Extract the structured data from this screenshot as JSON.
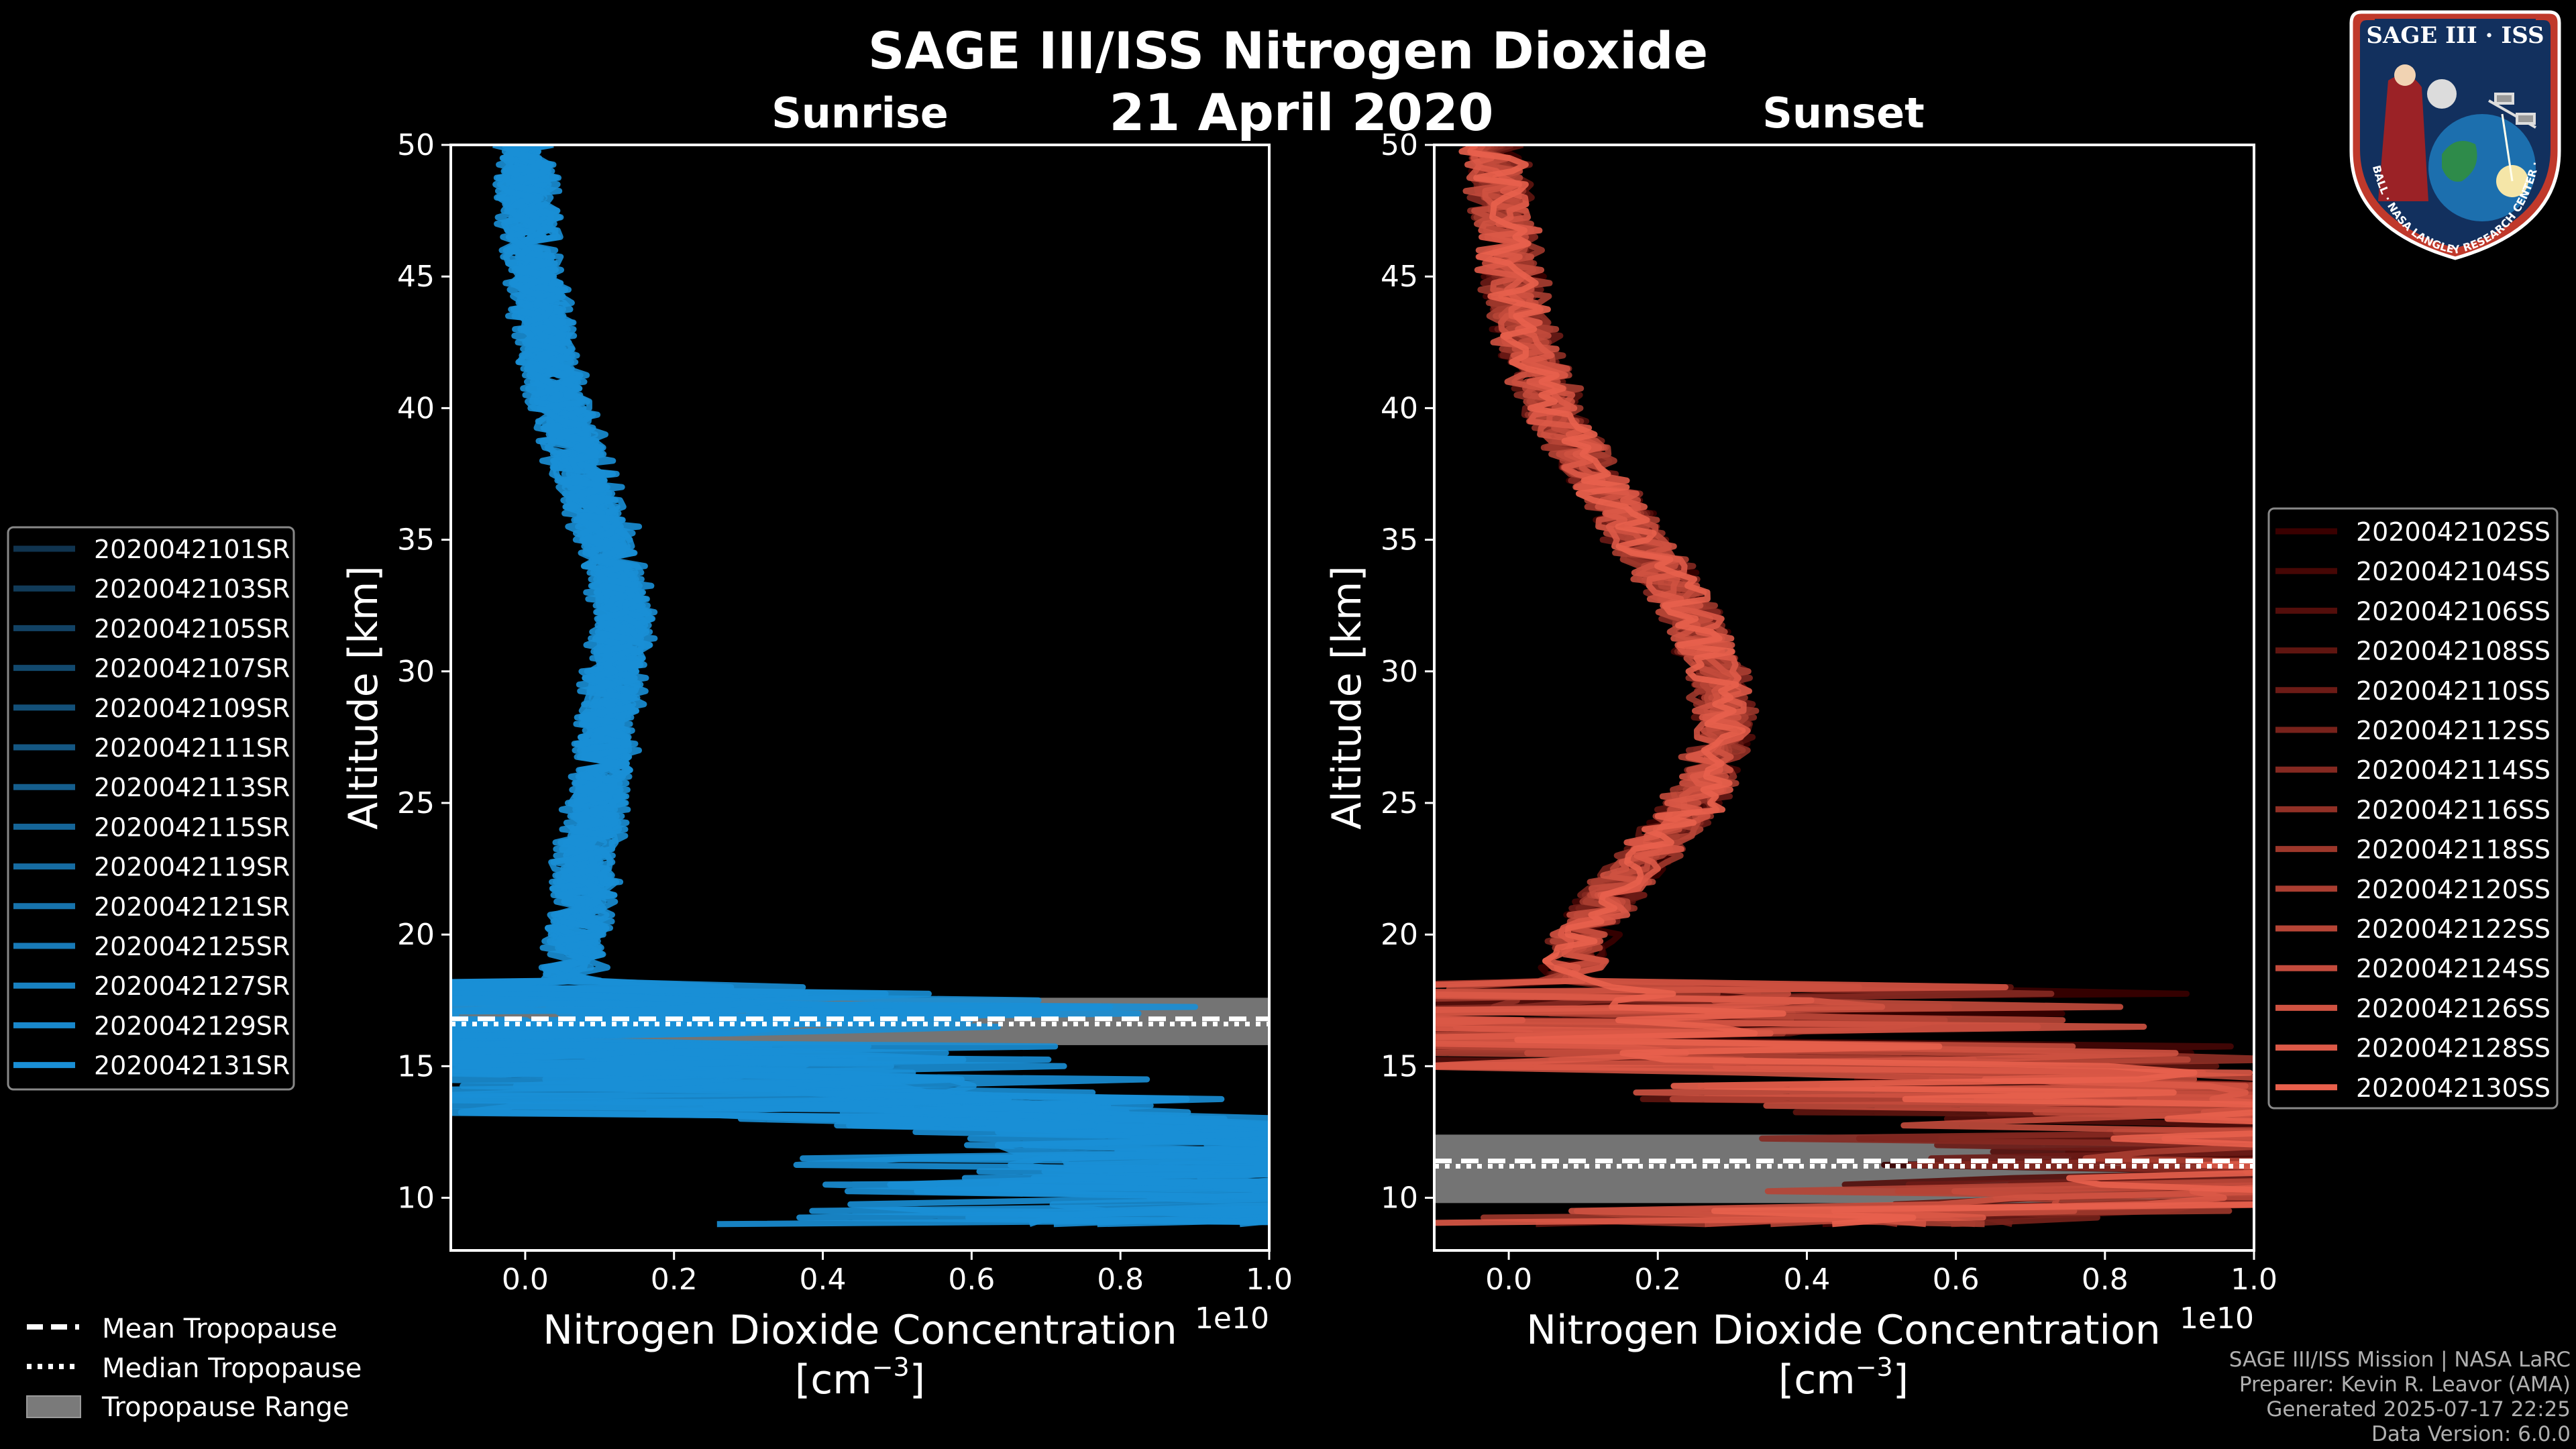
{
  "title": "SAGE III/ISS Nitrogen Dioxide",
  "date": "21 April 2020",
  "chart_data": [
    {
      "type": "line",
      "panel": "sunrise",
      "title": "Sunrise",
      "xlabel_line1": "Nitrogen Dioxide Concentration",
      "xlabel_line2": "[cm",
      "xlabel_exp": "−3",
      "xlabel_close": "]",
      "ylabel": "Altitude [km]",
      "offset_text": "1e10",
      "xlim": [
        -0.1,
        1.0
      ],
      "ylim": [
        8,
        50
      ],
      "xticks": [
        0.0,
        0.2,
        0.4,
        0.6,
        0.8,
        1.0
      ],
      "xtick_labels": [
        "0.0",
        "0.2",
        "0.4",
        "0.6",
        "0.8",
        "1.0"
      ],
      "yticks": [
        10,
        15,
        20,
        25,
        30,
        35,
        40,
        45,
        50
      ],
      "ytick_labels": [
        "10",
        "15",
        "20",
        "25",
        "30",
        "35",
        "40",
        "45",
        "50"
      ],
      "tropopause": {
        "mean": 16.8,
        "median": 16.6,
        "range": [
          15.8,
          17.6
        ]
      },
      "series_color": "#1a8fd6",
      "series": [
        {
          "name": "2020042101SR"
        },
        {
          "name": "2020042103SR"
        },
        {
          "name": "2020042105SR"
        },
        {
          "name": "2020042107SR"
        },
        {
          "name": "2020042109SR"
        },
        {
          "name": "2020042111SR"
        },
        {
          "name": "2020042113SR"
        },
        {
          "name": "2020042115SR"
        },
        {
          "name": "2020042119SR"
        },
        {
          "name": "2020042121SR"
        },
        {
          "name": "2020042125SR"
        },
        {
          "name": "2020042127SR"
        },
        {
          "name": "2020042129SR"
        },
        {
          "name": "2020042131SR"
        }
      ],
      "mean_profile": [
        [
          0.0,
          50
        ],
        [
          0.0,
          48
        ],
        [
          0.01,
          46
        ],
        [
          0.02,
          44
        ],
        [
          0.03,
          42
        ],
        [
          0.05,
          40
        ],
        [
          0.07,
          38
        ],
        [
          0.1,
          36
        ],
        [
          0.12,
          34
        ],
        [
          0.13,
          32
        ],
        [
          0.12,
          30
        ],
        [
          0.11,
          28
        ],
        [
          0.1,
          26
        ],
        [
          0.09,
          24
        ],
        [
          0.08,
          22
        ],
        [
          0.07,
          20
        ],
        [
          0.06,
          18
        ],
        [
          0.06,
          17
        ],
        [
          0.07,
          16
        ],
        [
          0.1,
          15
        ],
        [
          0.3,
          14
        ],
        [
          0.6,
          13
        ],
        [
          1.0,
          12
        ],
        [
          1.0,
          11
        ],
        [
          1.0,
          10
        ],
        [
          1.0,
          9.2
        ]
      ]
    },
    {
      "type": "line",
      "panel": "sunset",
      "title": "Sunset",
      "xlabel_line1": "Nitrogen Dioxide Concentration",
      "xlabel_line2": "[cm",
      "xlabel_exp": "−3",
      "xlabel_close": "]",
      "ylabel": "Altitude [km]",
      "offset_text": "1e10",
      "xlim": [
        -0.1,
        1.0
      ],
      "ylim": [
        8,
        50
      ],
      "xticks": [
        0.0,
        0.2,
        0.4,
        0.6,
        0.8,
        1.0
      ],
      "xtick_labels": [
        "0.0",
        "0.2",
        "0.4",
        "0.6",
        "0.8",
        "1.0"
      ],
      "yticks": [
        10,
        15,
        20,
        25,
        30,
        35,
        40,
        45,
        50
      ],
      "ytick_labels": [
        "10",
        "15",
        "20",
        "25",
        "30",
        "35",
        "40",
        "45",
        "50"
      ],
      "tropopause": {
        "mean": 11.4,
        "median": 11.2,
        "range": [
          9.8,
          12.4
        ]
      },
      "series_colors": [
        "#3a0000",
        "#e8604c"
      ],
      "series": [
        {
          "name": "2020042102SS"
        },
        {
          "name": "2020042104SS"
        },
        {
          "name": "2020042106SS"
        },
        {
          "name": "2020042108SS"
        },
        {
          "name": "2020042110SS"
        },
        {
          "name": "2020042112SS"
        },
        {
          "name": "2020042114SS"
        },
        {
          "name": "2020042116SS"
        },
        {
          "name": "2020042118SS"
        },
        {
          "name": "2020042120SS"
        },
        {
          "name": "2020042122SS"
        },
        {
          "name": "2020042124SS"
        },
        {
          "name": "2020042126SS"
        },
        {
          "name": "2020042128SS"
        },
        {
          "name": "2020042130SS"
        }
      ],
      "mean_profile": [
        [
          -0.02,
          50
        ],
        [
          -0.01,
          48
        ],
        [
          0.0,
          46
        ],
        [
          0.01,
          44
        ],
        [
          0.03,
          42
        ],
        [
          0.06,
          40
        ],
        [
          0.1,
          38
        ],
        [
          0.15,
          36
        ],
        [
          0.2,
          34
        ],
        [
          0.25,
          32
        ],
        [
          0.28,
          30
        ],
        [
          0.29,
          28
        ],
        [
          0.27,
          26
        ],
        [
          0.22,
          24
        ],
        [
          0.15,
          22
        ],
        [
          0.1,
          20
        ],
        [
          0.08,
          18
        ],
        [
          0.1,
          17
        ],
        [
          0.2,
          16
        ],
        [
          0.45,
          15
        ],
        [
          0.8,
          14
        ],
        [
          1.0,
          13
        ],
        [
          1.0,
          12
        ],
        [
          1.0,
          11
        ],
        [
          1.0,
          10
        ],
        [
          0.0,
          8.7
        ]
      ]
    }
  ],
  "bottom_legend": {
    "mean": "Mean Tropopause",
    "median": "Median Tropopause",
    "range": "Tropopause Range"
  },
  "logo": {
    "top_text": "SAGE III · ISS",
    "ring_text": "BALL · NASA LANGLEY RESEARCH CENTER · TAS-I · ESA"
  },
  "footer": {
    "line1": "SAGE III/ISS Mission | NASA LaRC",
    "line2": "Preparer: Kevin R. Leavor (AMA)",
    "line3": "Generated 2025-07-17 22:25",
    "line4": "Data Version: 6.0.0"
  },
  "colors": {
    "background": "#000000",
    "sunrise": "#1a8fd6",
    "sunset_light": "#e8604c",
    "sunset_dark": "#3a0000",
    "tropopause_band": "#7a7a7a",
    "footer_text": "#b0b0b0"
  }
}
